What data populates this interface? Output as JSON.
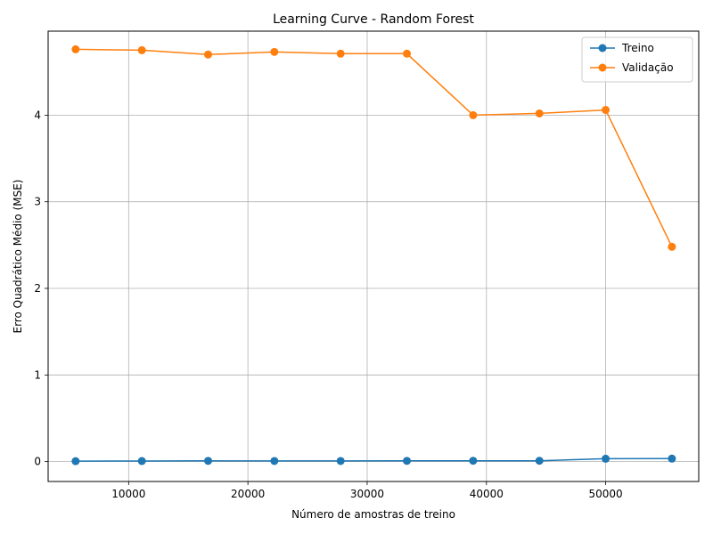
{
  "chart_data": {
    "type": "line",
    "title": "Learning Curve - Random Forest",
    "xlabel": "Número de amostras de treino",
    "ylabel": "Erro Quadrático Médio (MSE)",
    "xlim": [
      3250,
      57800
    ],
    "ylim": [
      -0.23,
      4.97
    ],
    "xticks": [
      10000,
      20000,
      30000,
      40000,
      50000
    ],
    "xtick_labels": [
      "10000",
      "20000",
      "30000",
      "40000",
      "50000"
    ],
    "yticks": [
      0,
      1,
      2,
      3,
      4
    ],
    "ytick_labels": [
      "0",
      "1",
      "2",
      "3",
      "4"
    ],
    "grid": true,
    "legend_position": "top-right",
    "x": [
      5555,
      11110,
      16665,
      22220,
      27775,
      33330,
      38885,
      44440,
      49995,
      55550
    ],
    "series": [
      {
        "name": "Treino",
        "color": "#1f77b4",
        "values": [
          0.005,
          0.006,
          0.008,
          0.007,
          0.007,
          0.008,
          0.009,
          0.009,
          0.033,
          0.034
        ]
      },
      {
        "name": "Validação",
        "color": "#ff7f0e",
        "values": [
          4.76,
          4.75,
          4.7,
          4.73,
          4.71,
          4.71,
          4.0,
          4.02,
          4.06,
          2.48
        ]
      }
    ]
  }
}
